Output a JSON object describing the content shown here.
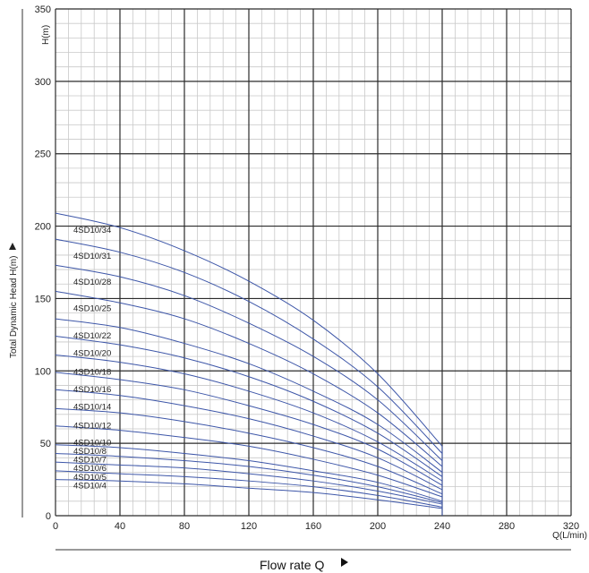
{
  "chart_data": {
    "type": "line",
    "xlabel": "Flow rate Q",
    "ylabel": "Total Dynamic Head H(m)",
    "x_unit": "Q(L/min)",
    "y_unit": "H(m)",
    "xlim": [
      0,
      320
    ],
    "ylim": [
      0,
      350
    ],
    "x_ticks": [
      0,
      40,
      80,
      120,
      160,
      200,
      240,
      280,
      320
    ],
    "y_ticks": [
      0,
      50,
      100,
      150,
      200,
      250,
      300,
      350
    ],
    "grid": true,
    "legend": "none",
    "line_color": "#3d56a8",
    "x": [
      0,
      40,
      80,
      120,
      160,
      200,
      240
    ],
    "series": [
      {
        "name": "4SD10/34",
        "values": [
          209,
          199,
          183,
          162,
          135,
          98,
          48
        ]
      },
      {
        "name": "4SD10/31",
        "values": [
          191,
          182,
          168,
          148,
          122,
          89,
          43
        ]
      },
      {
        "name": "4SD10/28",
        "values": [
          173,
          165,
          152,
          133,
          110,
          80,
          38
        ]
      },
      {
        "name": "4SD10/25",
        "values": [
          155,
          147,
          136,
          119,
          98,
          71,
          34
        ]
      },
      {
        "name": "4SD10/22",
        "values": [
          136,
          130,
          119,
          105,
          86,
          63,
          30
        ]
      },
      {
        "name": "4SD10/20",
        "values": [
          124,
          118,
          109,
          96,
          79,
          57,
          27
        ]
      },
      {
        "name": "4SD10/18",
        "values": [
          111,
          106,
          98,
          86,
          71,
          51,
          24
        ]
      },
      {
        "name": "4SD10/16",
        "values": [
          99,
          94,
          87,
          76,
          63,
          46,
          21
        ]
      },
      {
        "name": "4SD10/14",
        "values": [
          87,
          83,
          76,
          67,
          55,
          40,
          18
        ]
      },
      {
        "name": "4SD10/12",
        "values": [
          74,
          71,
          65,
          57,
          47,
          34,
          15
        ]
      },
      {
        "name": "4SD10/10",
        "values": [
          62,
          59,
          54,
          48,
          39,
          28,
          13
        ]
      },
      {
        "name": "4SD10/8",
        "values": [
          49,
          47,
          43,
          38,
          31,
          23,
          10
        ]
      },
      {
        "name": "4SD10/7",
        "values": [
          43,
          41,
          38,
          34,
          28,
          20,
          9
        ]
      },
      {
        "name": "4SD10/6",
        "values": [
          37,
          35,
          33,
          29,
          24,
          17,
          8
        ]
      },
      {
        "name": "4SD10/5",
        "values": [
          31,
          29,
          27,
          24,
          20,
          14,
          6
        ]
      },
      {
        "name": "4SD10/4",
        "values": [
          25,
          24,
          22,
          19,
          16,
          11,
          5
        ]
      }
    ]
  }
}
